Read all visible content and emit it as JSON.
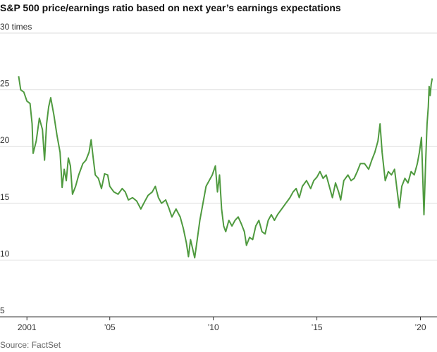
{
  "chart_data": {
    "type": "line",
    "title": "S&P 500 price/earnings ratio based on next year’s earnings expectations",
    "source": "Source: FactSet",
    "x": [
      2000.6,
      2000.7,
      2000.85,
      2001.0,
      2001.15,
      2001.25,
      2001.3,
      2001.45,
      2001.6,
      2001.75,
      2001.85,
      2001.95,
      2002.05,
      2002.15,
      2002.3,
      2002.45,
      2002.6,
      2002.7,
      2002.8,
      2002.9,
      2003.0,
      2003.1,
      2003.2,
      2003.35,
      2003.5,
      2003.7,
      2003.85,
      2004.0,
      2004.1,
      2004.2,
      2004.3,
      2004.45,
      2004.6,
      2004.75,
      2004.9,
      2005.0,
      2005.2,
      2005.4,
      2005.6,
      2005.75,
      2005.9,
      2006.1,
      2006.3,
      2006.5,
      2006.7,
      2006.85,
      2007.05,
      2007.2,
      2007.35,
      2007.5,
      2007.7,
      2007.85,
      2008.0,
      2008.2,
      2008.4,
      2008.55,
      2008.7,
      2008.8,
      2008.9,
      2009.0,
      2009.1,
      2009.2,
      2009.35,
      2009.5,
      2009.65,
      2009.8,
      2009.95,
      2010.1,
      2010.2,
      2010.3,
      2010.4,
      2010.5,
      2010.6,
      2010.75,
      2010.9,
      2011.05,
      2011.2,
      2011.35,
      2011.5,
      2011.6,
      2011.75,
      2011.9,
      2012.05,
      2012.2,
      2012.35,
      2012.5,
      2012.65,
      2012.8,
      2012.95,
      2013.1,
      2013.3,
      2013.5,
      2013.7,
      2013.85,
      2014.0,
      2014.15,
      2014.3,
      2014.5,
      2014.7,
      2014.85,
      2015.0,
      2015.15,
      2015.3,
      2015.45,
      2015.6,
      2015.75,
      2015.9,
      2016.05,
      2016.15,
      2016.3,
      2016.5,
      2016.65,
      2016.8,
      2016.95,
      2017.1,
      2017.3,
      2017.5,
      2017.65,
      2017.8,
      2017.95,
      2018.05,
      2018.15,
      2018.3,
      2018.45,
      2018.6,
      2018.75,
      2018.85,
      2018.98,
      2019.1,
      2019.25,
      2019.4,
      2019.55,
      2019.7,
      2019.85,
      2019.95,
      2020.05,
      2020.1,
      2020.17,
      2020.25,
      2020.32,
      2020.38,
      2020.42,
      2020.47,
      2020.52,
      2020.57
    ],
    "series": [
      {
        "name": "P/E ratio",
        "color": "#4f9a3f",
        "values": [
          26.2,
          25.0,
          24.8,
          24.0,
          23.8,
          22.0,
          19.4,
          20.5,
          22.5,
          21.5,
          18.8,
          22.0,
          23.5,
          24.3,
          22.8,
          21.0,
          19.5,
          16.4,
          18.0,
          17.0,
          19.0,
          18.3,
          15.8,
          16.5,
          17.5,
          18.5,
          18.8,
          19.5,
          20.6,
          19.0,
          17.5,
          17.2,
          16.3,
          17.6,
          17.5,
          16.5,
          16.0,
          15.8,
          16.3,
          16.0,
          15.3,
          15.5,
          15.2,
          14.5,
          15.2,
          15.7,
          16.0,
          16.5,
          15.5,
          15.0,
          15.3,
          14.6,
          13.8,
          14.5,
          13.8,
          12.8,
          11.5,
          10.3,
          11.8,
          11.0,
          10.2,
          11.5,
          13.5,
          15.0,
          16.5,
          17.0,
          17.5,
          18.3,
          16.0,
          17.5,
          14.5,
          13.0,
          12.5,
          13.5,
          13.0,
          13.5,
          13.8,
          13.2,
          12.5,
          11.3,
          12.0,
          11.8,
          13.0,
          13.5,
          12.5,
          12.3,
          13.5,
          14.0,
          13.5,
          14.0,
          14.5,
          15.0,
          15.5,
          16.0,
          16.3,
          15.5,
          16.5,
          17.0,
          16.3,
          17.0,
          17.3,
          17.8,
          17.2,
          17.5,
          16.5,
          15.5,
          16.8,
          16.0,
          15.3,
          17.0,
          17.5,
          17.0,
          17.2,
          17.8,
          18.5,
          18.5,
          18.0,
          18.8,
          19.5,
          20.5,
          22.0,
          19.5,
          17.0,
          17.8,
          17.5,
          18.0,
          16.5,
          14.6,
          16.5,
          17.2,
          16.8,
          17.8,
          17.5,
          18.5,
          19.5,
          20.8,
          18.0,
          14.0,
          18.5,
          22.0,
          23.5,
          25.3,
          24.5,
          25.5,
          26.0
        ]
      }
    ],
    "xlim": [
      1999.7,
      2020.8
    ],
    "ylim": [
      5,
      30
    ],
    "xticks": [
      2001,
      {
        "value": 2005,
        "label": "’05"
      },
      {
        "value": 2010,
        "label": "’10"
      },
      {
        "value": 2015,
        "label": "’15"
      },
      {
        "value": 2020,
        "label": "’20"
      }
    ],
    "yticks": [
      5,
      10,
      15,
      20,
      25,
      {
        "value": 30,
        "label": "30 times"
      }
    ],
    "grid": true
  }
}
